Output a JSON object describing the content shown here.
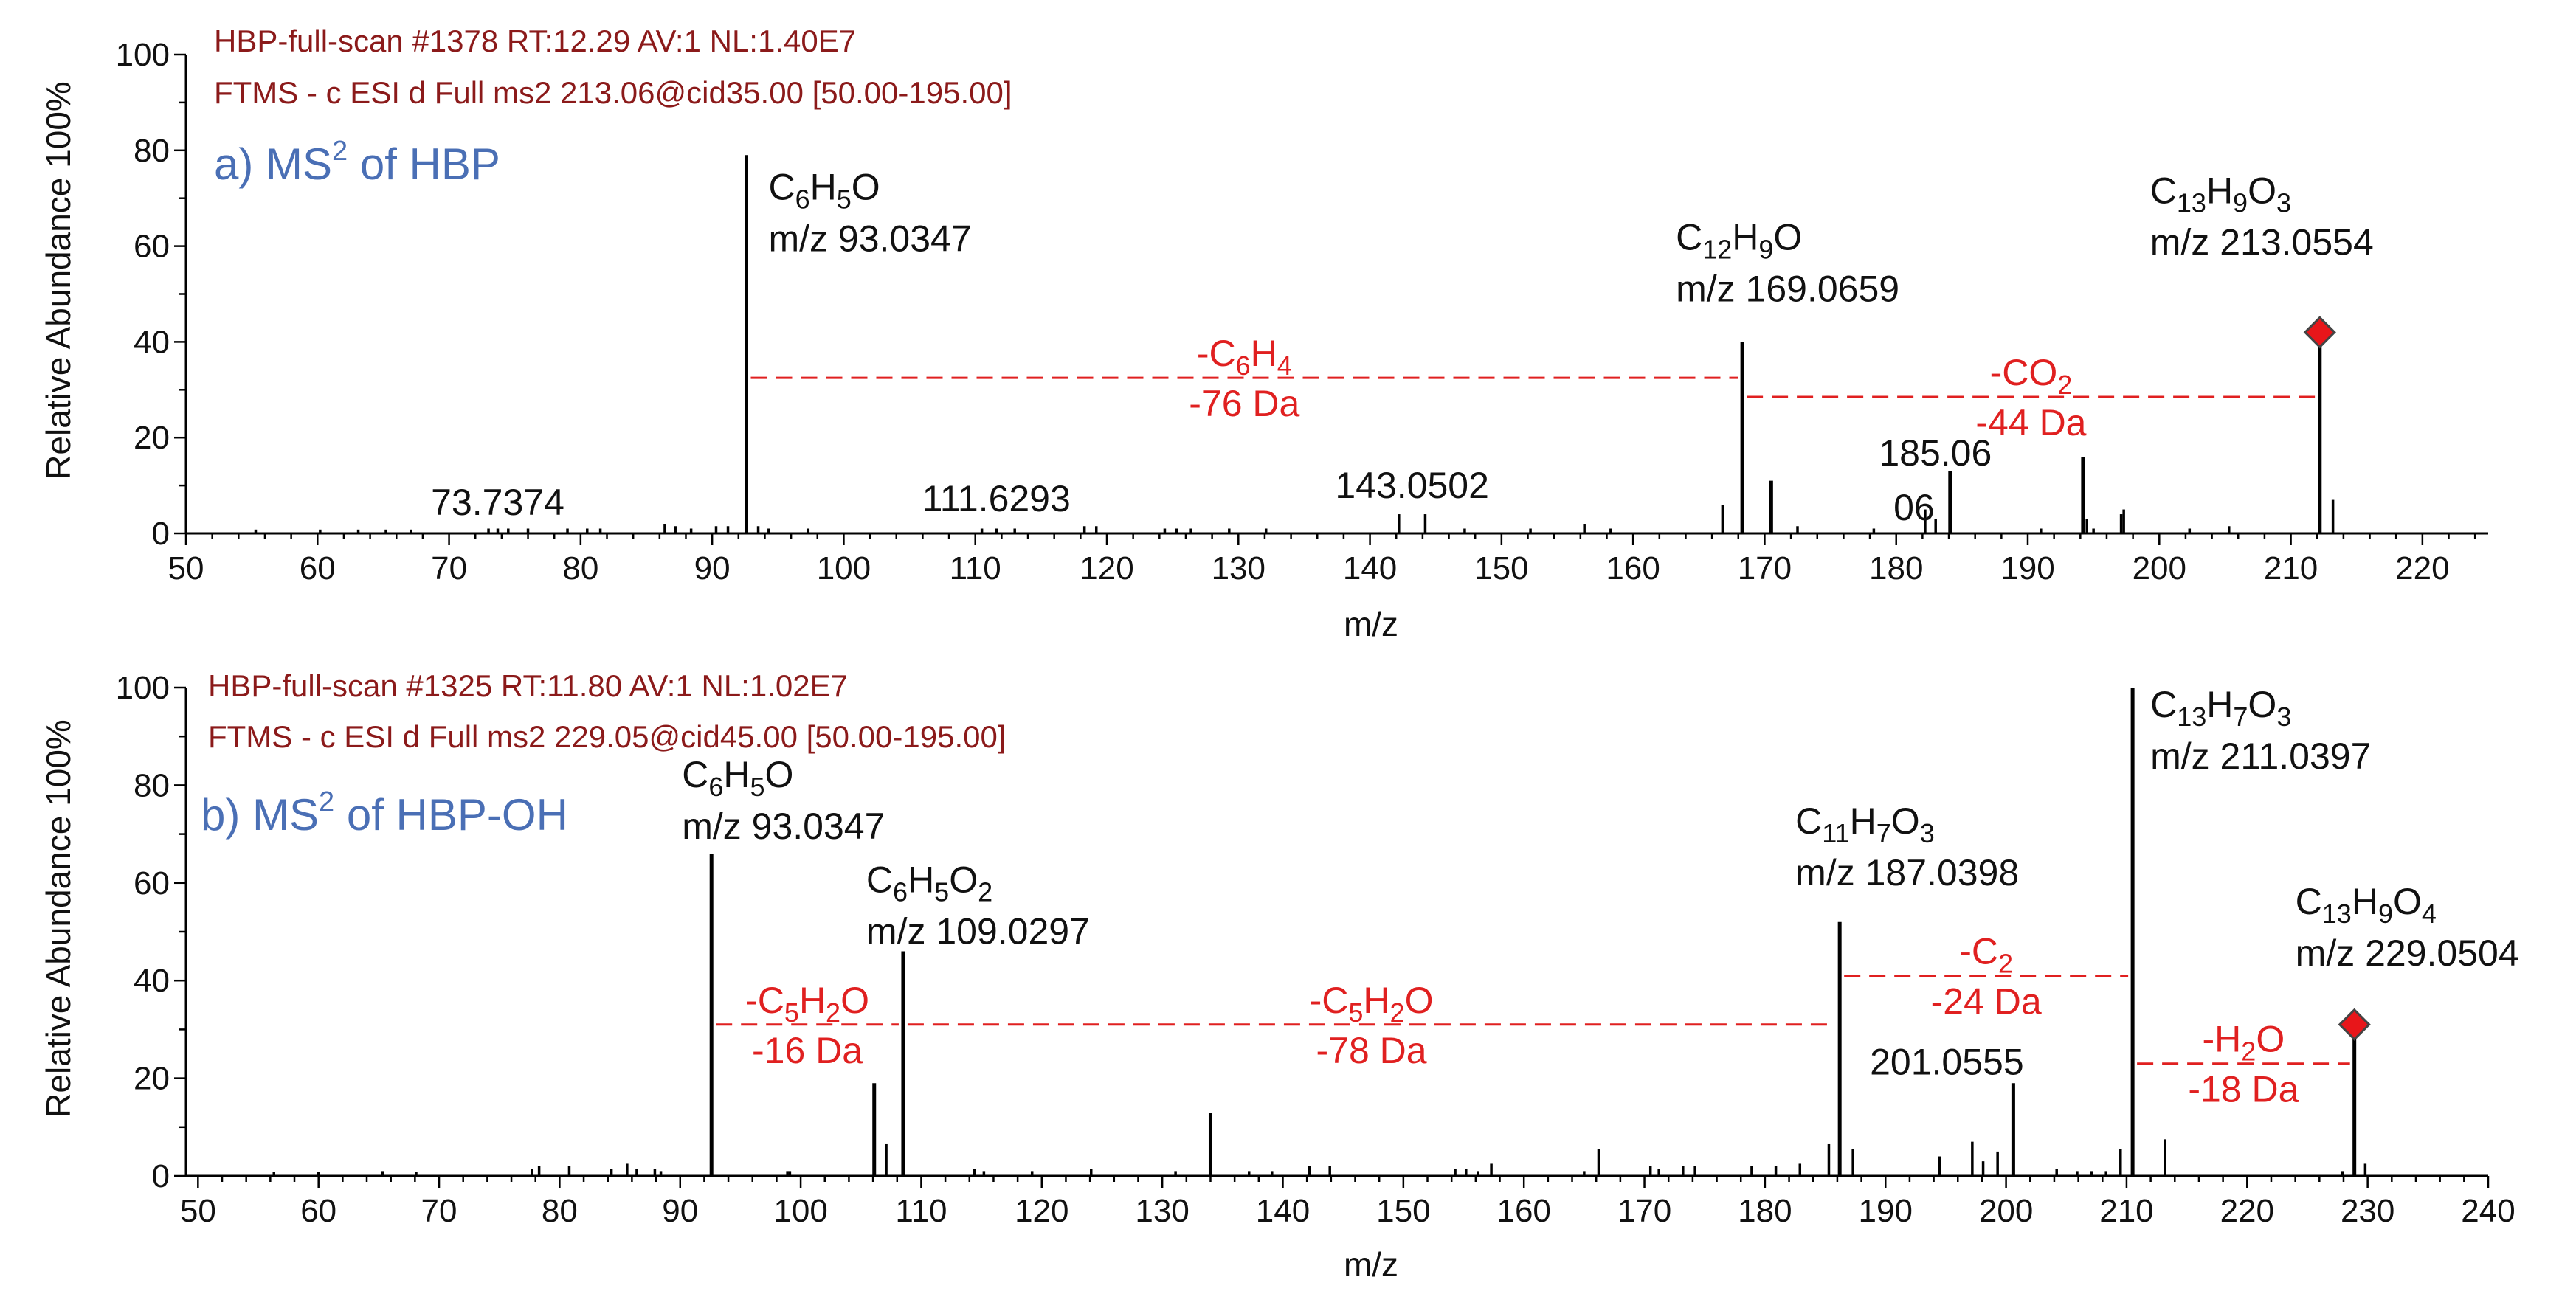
{
  "chart_data": [
    {
      "type": "bar",
      "panel": "a",
      "title": "a) MS² of HBP",
      "title_main": "a) MS",
      "title_sup": "2",
      "title_rest": " of HBP",
      "header_line1": "HBP-full-scan #1378 RT:12.29 AV:1 NL:1.40E7",
      "header_line2": "FTMS - c ESI d Full ms2 213.06@cid35.00 [50.00-195.00]",
      "xlabel": "m/z",
      "ylabel": "Relative Abundance 100%",
      "xlim": [
        50,
        225
      ],
      "ylim": [
        0,
        100
      ],
      "xticks": [
        50,
        60,
        70,
        80,
        90,
        100,
        110,
        120,
        130,
        140,
        150,
        160,
        170,
        180,
        190,
        200,
        210,
        220
      ],
      "yticks": [
        0,
        20,
        40,
        60,
        80,
        100
      ],
      "peaks": [
        {
          "x": 92.6,
          "y": 79
        },
        {
          "x": 168.3,
          "y": 40
        },
        {
          "x": 212.2,
          "y": 42
        },
        {
          "x": 170.5,
          "y": 11
        },
        {
          "x": 184.1,
          "y": 13
        },
        {
          "x": 194.2,
          "y": 16
        },
        {
          "x": 182.2,
          "y": 5
        },
        {
          "x": 183.0,
          "y": 3
        },
        {
          "x": 197.3,
          "y": 5
        },
        {
          "x": 213.2,
          "y": 7
        },
        {
          "x": 166.8,
          "y": 6
        },
        {
          "x": 142.2,
          "y": 4
        },
        {
          "x": 144.2,
          "y": 4
        },
        {
          "x": 194.5,
          "y": 3
        },
        {
          "x": 195.0,
          "y": 1
        },
        {
          "x": 197.1,
          "y": 4
        },
        {
          "x": 156.3,
          "y": 2
        },
        {
          "x": 158.3,
          "y": 1
        },
        {
          "x": 152.2,
          "y": 1
        },
        {
          "x": 147.2,
          "y": 1
        },
        {
          "x": 86.4,
          "y": 2
        },
        {
          "x": 87.2,
          "y": 1.5
        },
        {
          "x": 88.4,
          "y": 1
        },
        {
          "x": 90.3,
          "y": 1.5
        },
        {
          "x": 91.2,
          "y": 1.5
        },
        {
          "x": 93.5,
          "y": 1.5
        },
        {
          "x": 94.3,
          "y": 1
        },
        {
          "x": 97.3,
          "y": 1
        },
        {
          "x": 110.5,
          "y": 1
        },
        {
          "x": 111.6,
          "y": 1
        },
        {
          "x": 113.0,
          "y": 1
        },
        {
          "x": 118.3,
          "y": 1.5
        },
        {
          "x": 119.2,
          "y": 1.5
        },
        {
          "x": 124.4,
          "y": 1
        },
        {
          "x": 125.3,
          "y": 1
        },
        {
          "x": 126.4,
          "y": 1
        },
        {
          "x": 129.3,
          "y": 1
        },
        {
          "x": 132.1,
          "y": 1
        },
        {
          "x": 172.5,
          "y": 1.5
        },
        {
          "x": 178.3,
          "y": 1
        },
        {
          "x": 191.0,
          "y": 1
        },
        {
          "x": 202.3,
          "y": 1
        },
        {
          "x": 205.3,
          "y": 1.5
        },
        {
          "x": 73.0,
          "y": 1
        },
        {
          "x": 73.7,
          "y": 1
        },
        {
          "x": 74.5,
          "y": 1
        },
        {
          "x": 76.0,
          "y": 1
        },
        {
          "x": 79.0,
          "y": 1
        },
        {
          "x": 80.5,
          "y": 1
        },
        {
          "x": 81.5,
          "y": 1
        },
        {
          "x": 55.3,
          "y": 0.8
        },
        {
          "x": 60.2,
          "y": 0.8
        },
        {
          "x": 63.1,
          "y": 0.8
        },
        {
          "x": 65.2,
          "y": 0.8
        },
        {
          "x": 67.1,
          "y": 0.8
        }
      ],
      "ion_labels": [
        {
          "formula_parts": [
            [
              "C",
              ""
            ],
            [
              "6",
              "sub"
            ],
            [
              "H",
              ""
            ],
            [
              "5",
              "sub"
            ],
            [
              "O",
              ""
            ]
          ],
          "mz": "m/z 93.0347",
          "x": 92.6,
          "y": 79
        },
        {
          "formula_parts": [
            [
              "C",
              ""
            ],
            [
              "12",
              "sub"
            ],
            [
              "H",
              ""
            ],
            [
              "9",
              "sub"
            ],
            [
              "O",
              ""
            ]
          ],
          "mz": "m/z 169.0659",
          "x": 168.3,
          "y": 40
        },
        {
          "formula_parts": [
            [
              "C",
              ""
            ],
            [
              "13",
              "sub"
            ],
            [
              "H",
              ""
            ],
            [
              "9",
              "sub"
            ],
            [
              "O",
              ""
            ],
            [
              "3",
              "sub"
            ]
          ],
          "mz": "m/z 213.0554",
          "x": 212.2,
          "y": 42
        }
      ],
      "small_labels": [
        {
          "text": "73.7374",
          "x": 73.7
        },
        {
          "text": "111.6293",
          "x": 111.6
        },
        {
          "text": "143.0502",
          "x": 143.2
        },
        {
          "text": "185.06",
          "x": 184.1
        },
        {
          "text": "06",
          "x": 182.2
        }
      ],
      "neutral_losses": [
        {
          "from": 92.6,
          "to": 168.3,
          "y": 32.5,
          "formula_parts": [
            [
              "-C",
              ""
            ],
            [
              "6",
              "sub"
            ],
            [
              "H",
              ""
            ],
            [
              "4",
              "sub"
            ]
          ],
          "da": "-76 Da"
        },
        {
          "from": 168.3,
          "to": 212.2,
          "y": 28.5,
          "formula_parts": [
            [
              "-CO",
              ""
            ],
            [
              "2",
              "sub"
            ]
          ],
          "da": "-44 Da"
        }
      ],
      "precursor": {
        "x": 212.2,
        "y": 42
      },
      "colors": {
        "peak": "#000000",
        "loss": "#e02020",
        "precursor": "#e8161a",
        "header": "#8b1a1a",
        "title": "#4a6fb5"
      }
    },
    {
      "type": "bar",
      "panel": "b",
      "title": "b) MS² of HBP-OH",
      "title_main": "b) MS",
      "title_sup": "2",
      "title_rest": " of HBP-OH",
      "header_line1": "HBP-full-scan #1325 RT:11.80 AV:1 NL:1.02E7",
      "header_line2": "FTMS - c ESI d Full ms2 229.05@cid45.00 [50.00-195.00]",
      "xlabel": "m/z",
      "ylabel": "Relative Abundance 100%",
      "xlim": [
        49,
        240
      ],
      "ylim": [
        0,
        100
      ],
      "xticks": [
        50,
        60,
        70,
        80,
        90,
        100,
        110,
        120,
        130,
        140,
        150,
        160,
        170,
        180,
        190,
        200,
        210,
        220,
        230,
        240
      ],
      "yticks": [
        0,
        20,
        40,
        60,
        80,
        100
      ],
      "peaks": [
        {
          "x": 92.6,
          "y": 66
        },
        {
          "x": 108.5,
          "y": 46
        },
        {
          "x": 186.2,
          "y": 52
        },
        {
          "x": 210.5,
          "y": 100
        },
        {
          "x": 228.9,
          "y": 31
        },
        {
          "x": 200.6,
          "y": 19
        },
        {
          "x": 106.1,
          "y": 19
        },
        {
          "x": 107.1,
          "y": 6.5
        },
        {
          "x": 134.0,
          "y": 13
        },
        {
          "x": 185.3,
          "y": 6.5
        },
        {
          "x": 187.3,
          "y": 5.5
        },
        {
          "x": 197.2,
          "y": 7
        },
        {
          "x": 199.3,
          "y": 5
        },
        {
          "x": 209.5,
          "y": 5.5
        },
        {
          "x": 213.2,
          "y": 7.5
        },
        {
          "x": 166.2,
          "y": 5.5
        },
        {
          "x": 194.5,
          "y": 4
        },
        {
          "x": 198.1,
          "y": 3
        },
        {
          "x": 229.8,
          "y": 2.5
        },
        {
          "x": 178.9,
          "y": 2
        },
        {
          "x": 180.9,
          "y": 2
        },
        {
          "x": 182.9,
          "y": 2.5
        },
        {
          "x": 157.3,
          "y": 2.5
        },
        {
          "x": 142.2,
          "y": 2
        },
        {
          "x": 143.9,
          "y": 2
        },
        {
          "x": 170.5,
          "y": 2
        },
        {
          "x": 171.2,
          "y": 1.5
        },
        {
          "x": 173.2,
          "y": 2
        },
        {
          "x": 174.2,
          "y": 2
        },
        {
          "x": 155.2,
          "y": 1.5
        },
        {
          "x": 154.3,
          "y": 1.5
        },
        {
          "x": 156.2,
          "y": 1
        },
        {
          "x": 77.7,
          "y": 1.5
        },
        {
          "x": 78.3,
          "y": 2
        },
        {
          "x": 80.8,
          "y": 2
        },
        {
          "x": 84.3,
          "y": 1.5
        },
        {
          "x": 85.6,
          "y": 2.5
        },
        {
          "x": 86.4,
          "y": 1.5
        },
        {
          "x": 87.9,
          "y": 1.5
        },
        {
          "x": 88.4,
          "y": 1
        },
        {
          "x": 98.9,
          "y": 1
        },
        {
          "x": 99.1,
          "y": 1
        },
        {
          "x": 114.4,
          "y": 1.5
        },
        {
          "x": 115.2,
          "y": 1
        },
        {
          "x": 119.2,
          "y": 1
        },
        {
          "x": 124.1,
          "y": 1.5
        },
        {
          "x": 131.1,
          "y": 1
        },
        {
          "x": 137.2,
          "y": 1
        },
        {
          "x": 139.1,
          "y": 1
        },
        {
          "x": 165.0,
          "y": 1
        },
        {
          "x": 204.2,
          "y": 1.5
        },
        {
          "x": 205.9,
          "y": 1
        },
        {
          "x": 207.1,
          "y": 1
        },
        {
          "x": 208.3,
          "y": 1
        },
        {
          "x": 227.9,
          "y": 1
        },
        {
          "x": 65.3,
          "y": 1
        },
        {
          "x": 68.1,
          "y": 0.8
        },
        {
          "x": 56.3,
          "y": 0.8
        },
        {
          "x": 60.0,
          "y": 0.8
        }
      ],
      "ion_labels": [
        {
          "formula_parts": [
            [
              "C",
              ""
            ],
            [
              "6",
              "sub"
            ],
            [
              "H",
              ""
            ],
            [
              "5",
              "sub"
            ],
            [
              "O",
              ""
            ]
          ],
          "mz": "m/z 93.0347",
          "x": 92.6,
          "y": 66
        },
        {
          "formula_parts": [
            [
              "C",
              ""
            ],
            [
              "6",
              "sub"
            ],
            [
              "H",
              ""
            ],
            [
              "5",
              "sub"
            ],
            [
              "O",
              ""
            ],
            [
              "2",
              "sub"
            ]
          ],
          "mz": "m/z 109.0297",
          "x": 108.5,
          "y": 46
        },
        {
          "formula_parts": [
            [
              "C",
              ""
            ],
            [
              "11",
              "sub"
            ],
            [
              "H",
              ""
            ],
            [
              "7",
              "sub"
            ],
            [
              "O",
              ""
            ],
            [
              "3",
              "sub"
            ]
          ],
          "mz": "m/z 187.0398",
          "x": 186.2,
          "y": 52
        },
        {
          "formula_parts": [
            [
              "C",
              ""
            ],
            [
              "13",
              "sub"
            ],
            [
              "H",
              ""
            ],
            [
              "7",
              "sub"
            ],
            [
              "O",
              ""
            ],
            [
              "3",
              "sub"
            ]
          ],
          "mz": "m/z 211.0397",
          "x": 210.5,
          "y": 100
        },
        {
          "formula_parts": [
            [
              "C",
              ""
            ],
            [
              "13",
              "sub"
            ],
            [
              "H",
              ""
            ],
            [
              "9",
              "sub"
            ],
            [
              "O",
              ""
            ],
            [
              "4",
              "sub"
            ]
          ],
          "mz": "m/z 229.0504",
          "x": 228.9,
          "y": 31
        }
      ],
      "small_labels": [
        {
          "text": "201.0555",
          "x": 200.6
        }
      ],
      "neutral_losses": [
        {
          "from": 92.6,
          "to": 108.5,
          "y": 31,
          "formula_parts": [
            [
              "-C",
              ""
            ],
            [
              "5",
              "sub"
            ],
            [
              "H",
              ""
            ],
            [
              "2",
              "sub"
            ],
            [
              "O",
              ""
            ]
          ],
          "da": "-16 Da"
        },
        {
          "from": 108.5,
          "to": 186.2,
          "y": 31,
          "formula_parts": [
            [
              "-C",
              ""
            ],
            [
              "5",
              "sub"
            ],
            [
              "H",
              ""
            ],
            [
              "2",
              "sub"
            ],
            [
              "O",
              ""
            ]
          ],
          "da": "-78 Da"
        },
        {
          "from": 186.2,
          "to": 210.5,
          "y": 41,
          "formula_parts": [
            [
              "-C",
              ""
            ],
            [
              "2",
              "sub"
            ]
          ],
          "da": "-24 Da"
        },
        {
          "from": 210.5,
          "to": 228.9,
          "y": 23,
          "formula_parts": [
            [
              "-H",
              ""
            ],
            [
              "2",
              "sub"
            ],
            [
              "O",
              ""
            ]
          ],
          "da": "-18 Da"
        }
      ],
      "precursor": {
        "x": 228.9,
        "y": 31
      },
      "colors": {
        "peak": "#000000",
        "loss": "#e02020",
        "precursor": "#e8161a",
        "header": "#8b1a1a",
        "title": "#4a6fb5"
      }
    }
  ]
}
